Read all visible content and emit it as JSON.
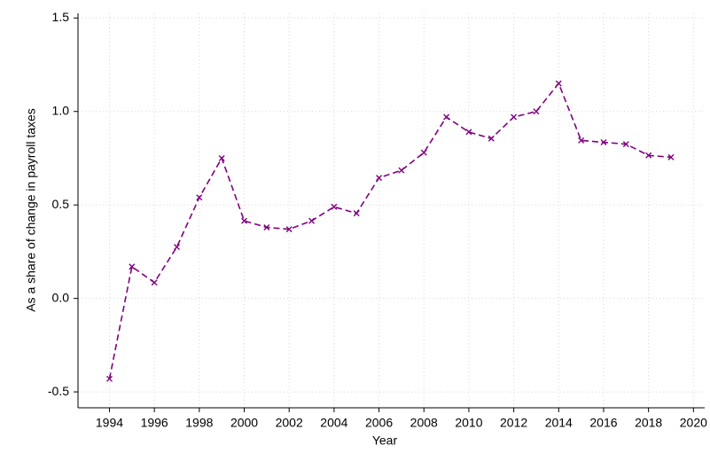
{
  "chart_data": {
    "type": "line",
    "x_label": "Year",
    "y_label": "As a share of change in payroll taxes",
    "x": [
      1994,
      1995,
      1996,
      1997,
      1998,
      1999,
      2000,
      2001,
      2002,
      2003,
      2004,
      2005,
      2006,
      2007,
      2008,
      2009,
      2010,
      2011,
      2012,
      2013,
      2014,
      2015,
      2016,
      2017,
      2018,
      2019
    ],
    "series": [
      {
        "color": "#800080",
        "values": [
          -0.43,
          0.17,
          0.085,
          0.275,
          0.54,
          0.75,
          0.415,
          0.38,
          0.37,
          0.415,
          0.49,
          0.455,
          0.645,
          0.685,
          0.78,
          0.97,
          0.89,
          0.855,
          0.97,
          1.0,
          1.15,
          0.845,
          0.835,
          0.825,
          0.765,
          0.755
        ]
      }
    ],
    "xlim": [
      1992.6,
      2020.5
    ],
    "xticks": [
      1994,
      1996,
      1998,
      2000,
      2002,
      2004,
      2006,
      2008,
      2010,
      2012,
      2014,
      2016,
      2018,
      2020
    ],
    "ylim": [
      -0.585,
      1.525
    ],
    "yticks": [
      {
        "value": -0.5,
        "label": "-0.5"
      },
      {
        "value": 0,
        "label": "0.0"
      },
      {
        "value": 0.5,
        "label": "0.5"
      },
      {
        "value": 1,
        "label": "1.0"
      },
      {
        "value": 1.5,
        "label": "1.5"
      }
    ],
    "grid": true,
    "line_style": "dashed",
    "marker": "x"
  }
}
